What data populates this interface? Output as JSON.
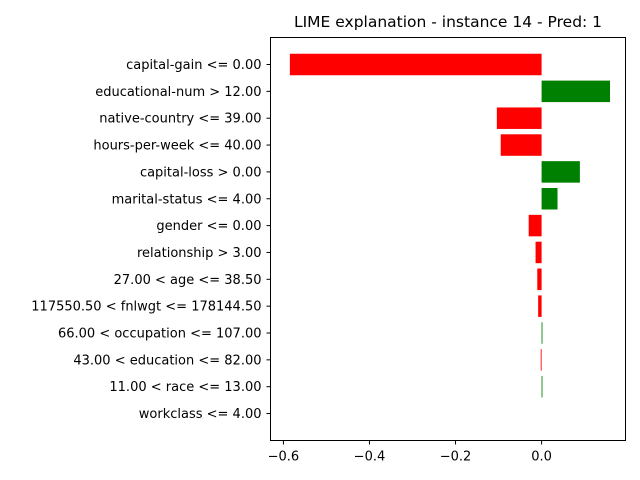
{
  "chart_data": {
    "type": "bar",
    "orientation": "horizontal",
    "title": "LIME explanation - instance 14 - Pred: 1",
    "xlabel": "",
    "ylabel": "",
    "xlim": [
      -0.63,
      0.195
    ],
    "xticks": [
      -0.6,
      -0.4,
      -0.2,
      0.0
    ],
    "xtick_labels": [
      "−0.6",
      "−0.4",
      "−0.2",
      "0.0"
    ],
    "grid": false,
    "legend": "none",
    "colors": {
      "positive": "#008000",
      "negative": "#ff0000"
    },
    "categories": [
      "capital-gain <= 0.00",
      "educational-num > 12.00",
      "native-country <= 39.00",
      "hours-per-week <= 40.00",
      "capital-loss > 0.00",
      "marital-status <= 4.00",
      "gender <= 0.00",
      "relationship > 3.00",
      "27.00 < age <= 38.50",
      "117550.50 < fnlwgt <= 178144.50",
      "66.00 < occupation <= 107.00",
      "43.00 < education <= 82.00",
      "11.00 < race <= 13.00",
      "workclass <= 4.00"
    ],
    "values": [
      -0.585,
      0.159,
      -0.104,
      -0.095,
      0.089,
      0.037,
      -0.03,
      -0.014,
      -0.01,
      -0.008,
      0.002,
      -0.002,
      0.002,
      0.0
    ]
  }
}
